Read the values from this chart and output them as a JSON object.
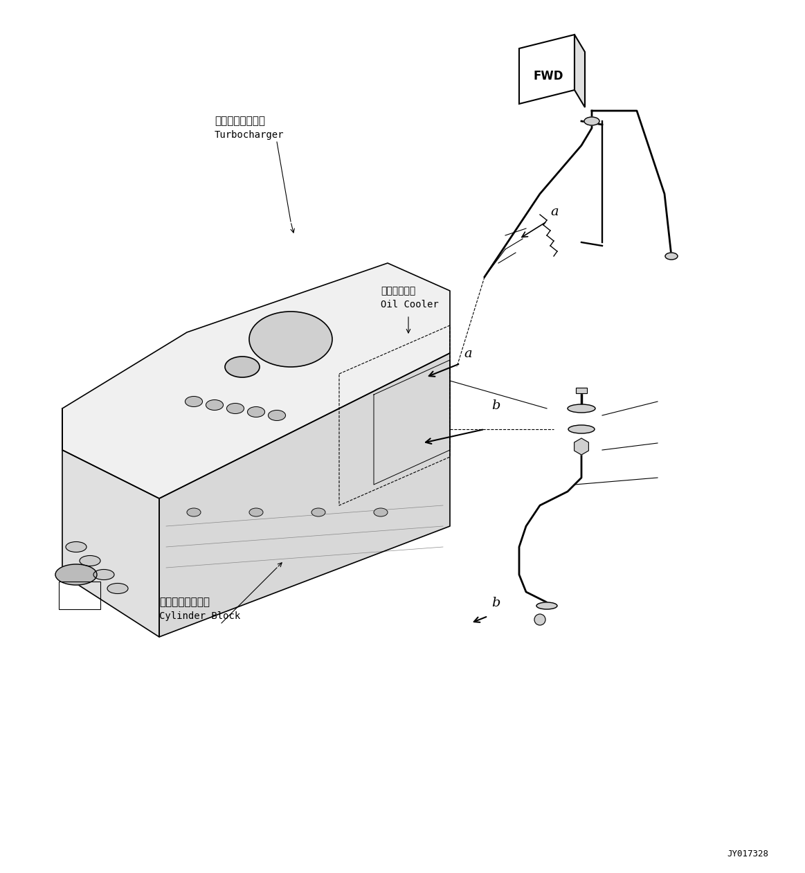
{
  "background_color": "#ffffff",
  "line_color": "#000000",
  "fig_width": 11.63,
  "fig_height": 12.61,
  "dpi": 100,
  "title": "",
  "watermark": "JY017328",
  "fwd_label": "FWD",
  "labels": {
    "turbocharger_jp": "ターボチャージャ",
    "turbocharger_en": "Turbocharger",
    "oil_cooler_jp": "オイルクーラ",
    "oil_cooler_en": "Oil Cooler",
    "cylinder_block_jp": "シリンダブロック",
    "cylinder_block_en": "Cylinder Block",
    "label_a": "a",
    "label_b": "b"
  },
  "font_sizes": {
    "label_large": 11,
    "label_medium": 10,
    "label_small": 9,
    "watermark": 9,
    "fwd": 12,
    "callout": 14
  }
}
